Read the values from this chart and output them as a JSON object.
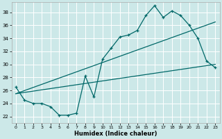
{
  "xlabel": "Humidex (Indice chaleur)",
  "xlim": [
    -0.5,
    23.5
  ],
  "ylim": [
    21.0,
    39.5
  ],
  "yticks": [
    22,
    24,
    26,
    28,
    30,
    32,
    34,
    36,
    38
  ],
  "xticks": [
    0,
    1,
    2,
    3,
    4,
    5,
    6,
    7,
    8,
    9,
    10,
    11,
    12,
    13,
    14,
    15,
    16,
    17,
    18,
    19,
    20,
    21,
    22,
    23
  ],
  "bg_color": "#cce8e8",
  "grid_color": "#b8d8d8",
  "line_color": "#006868",
  "main_x": [
    0,
    1,
    2,
    3,
    4,
    5,
    6,
    7,
    8,
    9,
    10,
    11,
    12,
    13,
    14,
    15,
    16,
    17,
    18,
    19,
    20,
    21,
    22,
    23
  ],
  "main_y": [
    26.5,
    24.5,
    24.0,
    24.0,
    23.5,
    22.2,
    22.2,
    22.5,
    28.2,
    25.0,
    30.8,
    32.5,
    34.2,
    34.5,
    35.2,
    37.5,
    39.0,
    37.2,
    38.2,
    37.5,
    36.0,
    34.0,
    30.5,
    29.5
  ],
  "trend1_x": [
    0,
    23
  ],
  "trend1_y": [
    25.5,
    30.0
  ],
  "trend2_x": [
    0,
    23
  ],
  "trend2_y": [
    25.5,
    36.5
  ]
}
